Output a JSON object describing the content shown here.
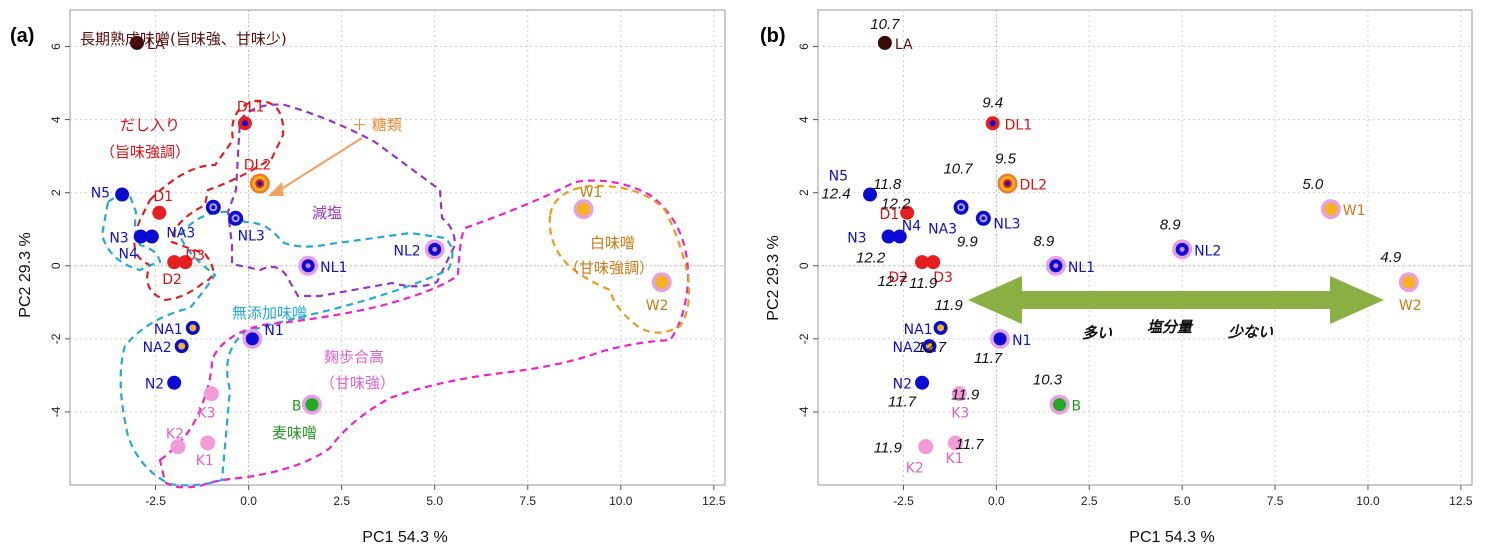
{
  "chart_data": [
    {
      "type": "scatter",
      "panel": "(a)",
      "xlabel": "PC1  54.3 %",
      "ylabel": "PC2  29.3 %",
      "xlim": [
        -4.8,
        12.8
      ],
      "ylim": [
        -6.0,
        7.0
      ],
      "xticks": [
        -2.5,
        0.0,
        2.5,
        5.0,
        7.5,
        10.0,
        12.5
      ],
      "xtick_labels": [
        "-2.5",
        "0.0",
        "2.5",
        "5.0",
        "7.5",
        "10.0",
        "12.5"
      ],
      "yticks": [
        -4,
        -2,
        0,
        2,
        4,
        6
      ],
      "ytick_labels": [
        "-4",
        "-2",
        "0",
        "2",
        "4",
        "6"
      ],
      "points": [
        {
          "name": "LA",
          "x": -3.0,
          "y": 6.1,
          "style": "la"
        },
        {
          "name": "DL1",
          "x": -0.1,
          "y": 3.9,
          "style": "dl1"
        },
        {
          "name": "DL2",
          "x": 0.3,
          "y": 2.25,
          "style": "dl2"
        },
        {
          "name": "D1",
          "x": -2.4,
          "y": 1.45,
          "style": "d"
        },
        {
          "name": "D2",
          "x": -2.0,
          "y": 0.1,
          "style": "d"
        },
        {
          "name": "D3",
          "x": -1.7,
          "y": 0.1,
          "style": "d"
        },
        {
          "name": "N5",
          "x": -3.4,
          "y": 1.95,
          "style": "n"
        },
        {
          "name": "N3",
          "x": -2.9,
          "y": 0.8,
          "style": "n"
        },
        {
          "name": "N4",
          "x": -2.6,
          "y": 0.8,
          "style": "n"
        },
        {
          "name": "NA3",
          "x": -0.95,
          "y": 1.6,
          "style": "nl"
        },
        {
          "name": "NL3",
          "x": -0.35,
          "y": 1.3,
          "style": "nl"
        },
        {
          "name": "NL1",
          "x": 1.6,
          "y": 0.0,
          "style": "nl1"
        },
        {
          "name": "NL2",
          "x": 5.0,
          "y": 0.45,
          "style": "nl1"
        },
        {
          "name": "NA1",
          "x": -1.5,
          "y": -1.7,
          "style": "na"
        },
        {
          "name": "NA2",
          "x": -1.8,
          "y": -2.2,
          "style": "na"
        },
        {
          "name": "N1",
          "x": 0.1,
          "y": -2.0,
          "style": "n1"
        },
        {
          "name": "N2",
          "x": -2.0,
          "y": -3.2,
          "style": "n"
        },
        {
          "name": "K3",
          "x": -1.0,
          "y": -3.5,
          "style": "k"
        },
        {
          "name": "K2",
          "x": -1.9,
          "y": -4.95,
          "style": "k"
        },
        {
          "name": "K1",
          "x": -1.1,
          "y": -4.85,
          "style": "k"
        },
        {
          "name": "B",
          "x": 1.7,
          "y": -3.8,
          "style": "b"
        },
        {
          "name": "W1",
          "x": 9.0,
          "y": 1.55,
          "style": "w"
        },
        {
          "name": "W2",
          "x": 11.1,
          "y": -0.45,
          "style": "w"
        }
      ],
      "annotations": {
        "la_group": "長期熟成味噌(旨味強、甘味少)",
        "dashi_line1": "だし入り",
        "dashi_line2": "（旨味強調）",
        "sugar": "＋ 糖類",
        "salt_reduced": "減塩",
        "white_line1": "白味噌",
        "white_line2": "（甘味強調）",
        "additive_free": "無添加味噌",
        "koji_line1": "麹歩合高",
        "koji_line2": "（甘味強）",
        "barley": "麦味噌"
      }
    },
    {
      "type": "scatter",
      "panel": "(b)",
      "xlabel": "PC1  54.3 %",
      "ylabel": "PC2  29.3 %",
      "xlim": [
        -4.8,
        12.8
      ],
      "ylim": [
        -6.0,
        7.0
      ],
      "xticks": [
        -2.5,
        0.0,
        2.5,
        5.0,
        7.5,
        10.0,
        12.5
      ],
      "xtick_labels": [
        "-2.5",
        "0.0",
        "2.5",
        "5.0",
        "7.5",
        "10.0",
        "12.5"
      ],
      "yticks": [
        -4,
        -2,
        0,
        2,
        4,
        6
      ],
      "ytick_labels": [
        "-4",
        "-2",
        "0",
        "2",
        "4",
        "6"
      ],
      "points": [
        {
          "name": "LA",
          "salt": "10.7"
        },
        {
          "name": "DL1",
          "salt": "9.4"
        },
        {
          "name": "DL2",
          "salt": "9.5"
        },
        {
          "name": "D1",
          "salt": "11.8"
        },
        {
          "name": "D2",
          "salt": "12.7"
        },
        {
          "name": "D3",
          "salt": "11.9"
        },
        {
          "name": "N5",
          "salt": "12.4"
        },
        {
          "name": "N3",
          "salt": "12.2"
        },
        {
          "name": "N4",
          "salt": "12.2"
        },
        {
          "name": "NA3",
          "salt": "10.7"
        },
        {
          "name": "NL3",
          "salt": "9.9"
        },
        {
          "name": "NL1",
          "salt": "8.9"
        },
        {
          "name": "NL2",
          "salt": "8.9"
        },
        {
          "name": "NA1",
          "salt": "11.9"
        },
        {
          "name": "NA2",
          "salt": "12.7"
        },
        {
          "name": "N1",
          "salt": "11.7"
        },
        {
          "name": "N2",
          "salt": "11.7"
        },
        {
          "name": "K3",
          "salt": "11.9"
        },
        {
          "name": "K2",
          "salt": "11.9"
        },
        {
          "name": "K1",
          "salt": "11.7"
        },
        {
          "name": "B",
          "salt": "10.3"
        },
        {
          "name": "W1",
          "salt": "5.0"
        },
        {
          "name": "W2",
          "salt": "4.9"
        }
      ],
      "annotations": {
        "more": "多い",
        "salt_content": "塩分量",
        "less": "少ない"
      }
    }
  ],
  "colors": {
    "dark": "#3a0a0a",
    "red": "#e61e1e",
    "blue": "#0b0bd6",
    "pink": "#f29bd8",
    "green": "#22aa22",
    "orange": "#f7b31b",
    "ring_pink": "#e6a0e6",
    "ring_orange": "#f07a28",
    "purple": "#9933cc",
    "label_red": "#dd1111",
    "label_blue": "#1111cc",
    "label_pink": "#e060d0",
    "label_green": "#229922",
    "label_orange": "#d07a10",
    "label_dark": "#5a1010",
    "arrow": "#8ab043"
  }
}
